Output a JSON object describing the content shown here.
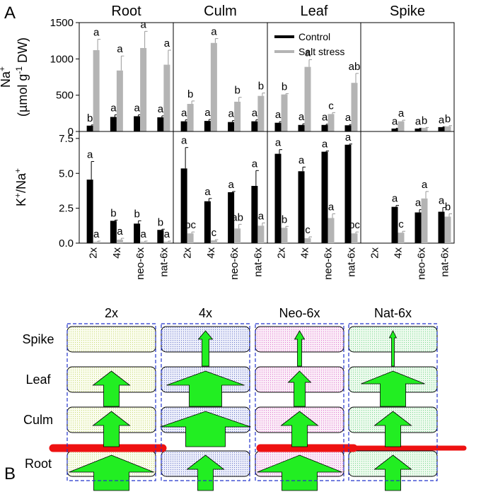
{
  "panel_label": "A",
  "chart_data": [
    {
      "type": "bar",
      "title": "Root",
      "ylabel": [
        [
          {
            "text": "Na"
          },
          {
            "text": "+",
            "sup": true
          }
        ],
        [
          {
            "text": "(µmol g"
          },
          {
            "text": "-1",
            "sup": true
          },
          {
            "text": " DW)"
          }
        ]
      ],
      "ylim": [
        0,
        1500
      ],
      "yticks": [
        0,
        500,
        1000,
        1500
      ],
      "series": [
        {
          "color": "#000000",
          "values": [
            80,
            200,
            210,
            195
          ],
          "errors": [
            10,
            30,
            20,
            20
          ],
          "letters": [
            "b",
            "a",
            "a",
            "a"
          ]
        },
        {
          "color": "#b4b4b4",
          "values": [
            1120,
            840,
            1150,
            920
          ],
          "errors": [
            150,
            200,
            230,
            200
          ],
          "letters": [
            "a",
            "a",
            "a",
            "a"
          ]
        }
      ]
    },
    {
      "type": "bar",
      "title": "Culm",
      "ylim": [
        0,
        1500
      ],
      "series": [
        {
          "color": "#000000",
          "values": [
            140,
            145,
            130,
            140
          ],
          "errors": [
            20,
            20,
            20,
            20
          ],
          "letters": [
            "a",
            "a",
            "a",
            "a"
          ]
        },
        {
          "color": "#b4b4b4",
          "values": [
            380,
            1220,
            410,
            490
          ],
          "errors": [
            40,
            60,
            60,
            40
          ],
          "letters": [
            "b",
            "a",
            "b",
            "b"
          ]
        }
      ]
    },
    {
      "type": "bar",
      "title": "Leaf",
      "ylim": [
        0,
        1500
      ],
      "legend": "upper right",
      "series": [
        {
          "name": "Control",
          "color": "#000000",
          "values": [
            120,
            90,
            90,
            85
          ],
          "errors": [
            15,
            15,
            10,
            10
          ],
          "letters": [
            "a",
            "a",
            "a",
            "a"
          ]
        },
        {
          "name": "Salt stress",
          "color": "#b4b4b4",
          "values": [
            510,
            890,
            240,
            670
          ],
          "errors": [
            10,
            100,
            20,
            130
          ],
          "letters": [
            "b",
            "a",
            "c",
            "ab"
          ]
        }
      ]
    },
    {
      "type": "bar",
      "title": "Spike",
      "ylim": [
        0,
        1500
      ],
      "series": [
        {
          "color": "#000000",
          "values": [
            null,
            40,
            40,
            60
          ],
          "errors": [
            null,
            5,
            5,
            5
          ],
          "letters": [
            null,
            "a",
            "a",
            "a"
          ]
        },
        {
          "color": "#b4b4b4",
          "values": [
            null,
            140,
            50,
            70
          ],
          "errors": [
            null,
            15,
            5,
            10
          ],
          "letters": [
            null,
            "a",
            "b",
            "b"
          ]
        }
      ]
    },
    {
      "type": "bar",
      "ylabel": [
        [
          {
            "text": "K"
          },
          {
            "text": "+",
            "sup": true
          },
          {
            "text": "/Na"
          },
          {
            "text": "+",
            "sup": true
          }
        ]
      ],
      "ylim": [
        0,
        8
      ],
      "yticks": [
        {
          "value": 0,
          "label": "0.0"
        },
        2.5,
        {
          "value": 5,
          "label": "5.0"
        },
        7.5
      ],
      "categories": [
        "2x",
        "4x",
        "neo-6x",
        "nat-6x"
      ],
      "series": [
        {
          "color": "#000000",
          "values": [
            4.55,
            1.6,
            1.4,
            0.95
          ],
          "errors": [
            1.3,
            0.05,
            0.2,
            0.05
          ],
          "letters": [
            "a",
            "b",
            "b",
            "b"
          ]
        },
        {
          "color": "#b4b4b4",
          "values": [
            0.1,
            0.25,
            0.1,
            0.1
          ],
          "errors": [
            0.05,
            0.1,
            0.05,
            0.05
          ],
          "letters": [
            "a",
            "a",
            "a",
            "a"
          ]
        }
      ]
    },
    {
      "type": "bar",
      "ylim": [
        0,
        8
      ],
      "categories": [
        "2x",
        "4x",
        "neo-6x",
        "nat-6x"
      ],
      "series": [
        {
          "color": "#000000",
          "values": [
            5.35,
            3.0,
            3.65,
            4.1
          ],
          "errors": [
            1.5,
            0.2,
            0.05,
            1.1
          ],
          "letters": [
            "a",
            "a",
            "a",
            "a"
          ]
        },
        {
          "color": "#b4b4b4",
          "values": [
            0.7,
            0.2,
            1.05,
            1.25
          ],
          "errors": [
            0.1,
            0.05,
            0.3,
            0.2
          ],
          "letters": [
            "bc",
            "c",
            "ab",
            "a"
          ]
        }
      ]
    },
    {
      "type": "bar",
      "ylim": [
        0,
        8
      ],
      "categories": [
        "2x",
        "4x",
        "neo-6x",
        "nat-6x"
      ],
      "series": [
        {
          "color": "#000000",
          "values": [
            6.4,
            5.15,
            6.55,
            7.05
          ],
          "errors": [
            0.3,
            0.3,
            0.05,
            0.05
          ],
          "letters": [
            "a",
            "a",
            "a",
            "a"
          ]
        },
        {
          "color": "#b4b4b4",
          "values": [
            1.1,
            0.35,
            1.8,
            0.7
          ],
          "errors": [
            0.1,
            0.1,
            0.3,
            0.1
          ],
          "letters": [
            "b",
            "c",
            "a",
            "bc"
          ]
        }
      ]
    },
    {
      "type": "bar",
      "ylim": [
        0,
        8
      ],
      "categories": [
        "2x",
        "4x",
        "neo-6x",
        "nat-6x"
      ],
      "series": [
        {
          "color": "#000000",
          "values": [
            null,
            2.6,
            2.2,
            2.25
          ],
          "errors": [
            null,
            0.1,
            0.2,
            0.3
          ],
          "letters": [
            null,
            "a",
            "a",
            "a"
          ]
        },
        {
          "color": "#b4b4b4",
          "values": [
            null,
            0.75,
            3.2,
            1.9
          ],
          "errors": [
            null,
            0.1,
            0.5,
            0.2
          ],
          "letters": [
            null,
            "c",
            "a",
            "b"
          ]
        }
      ]
    }
  ],
  "diagram": {
    "label": "B",
    "columns": [
      "2x",
      "4x",
      "Neo-6x",
      "Nat-6x"
    ],
    "rows": [
      "Spike",
      "Leaf",
      "Culm",
      "Root"
    ]
  }
}
